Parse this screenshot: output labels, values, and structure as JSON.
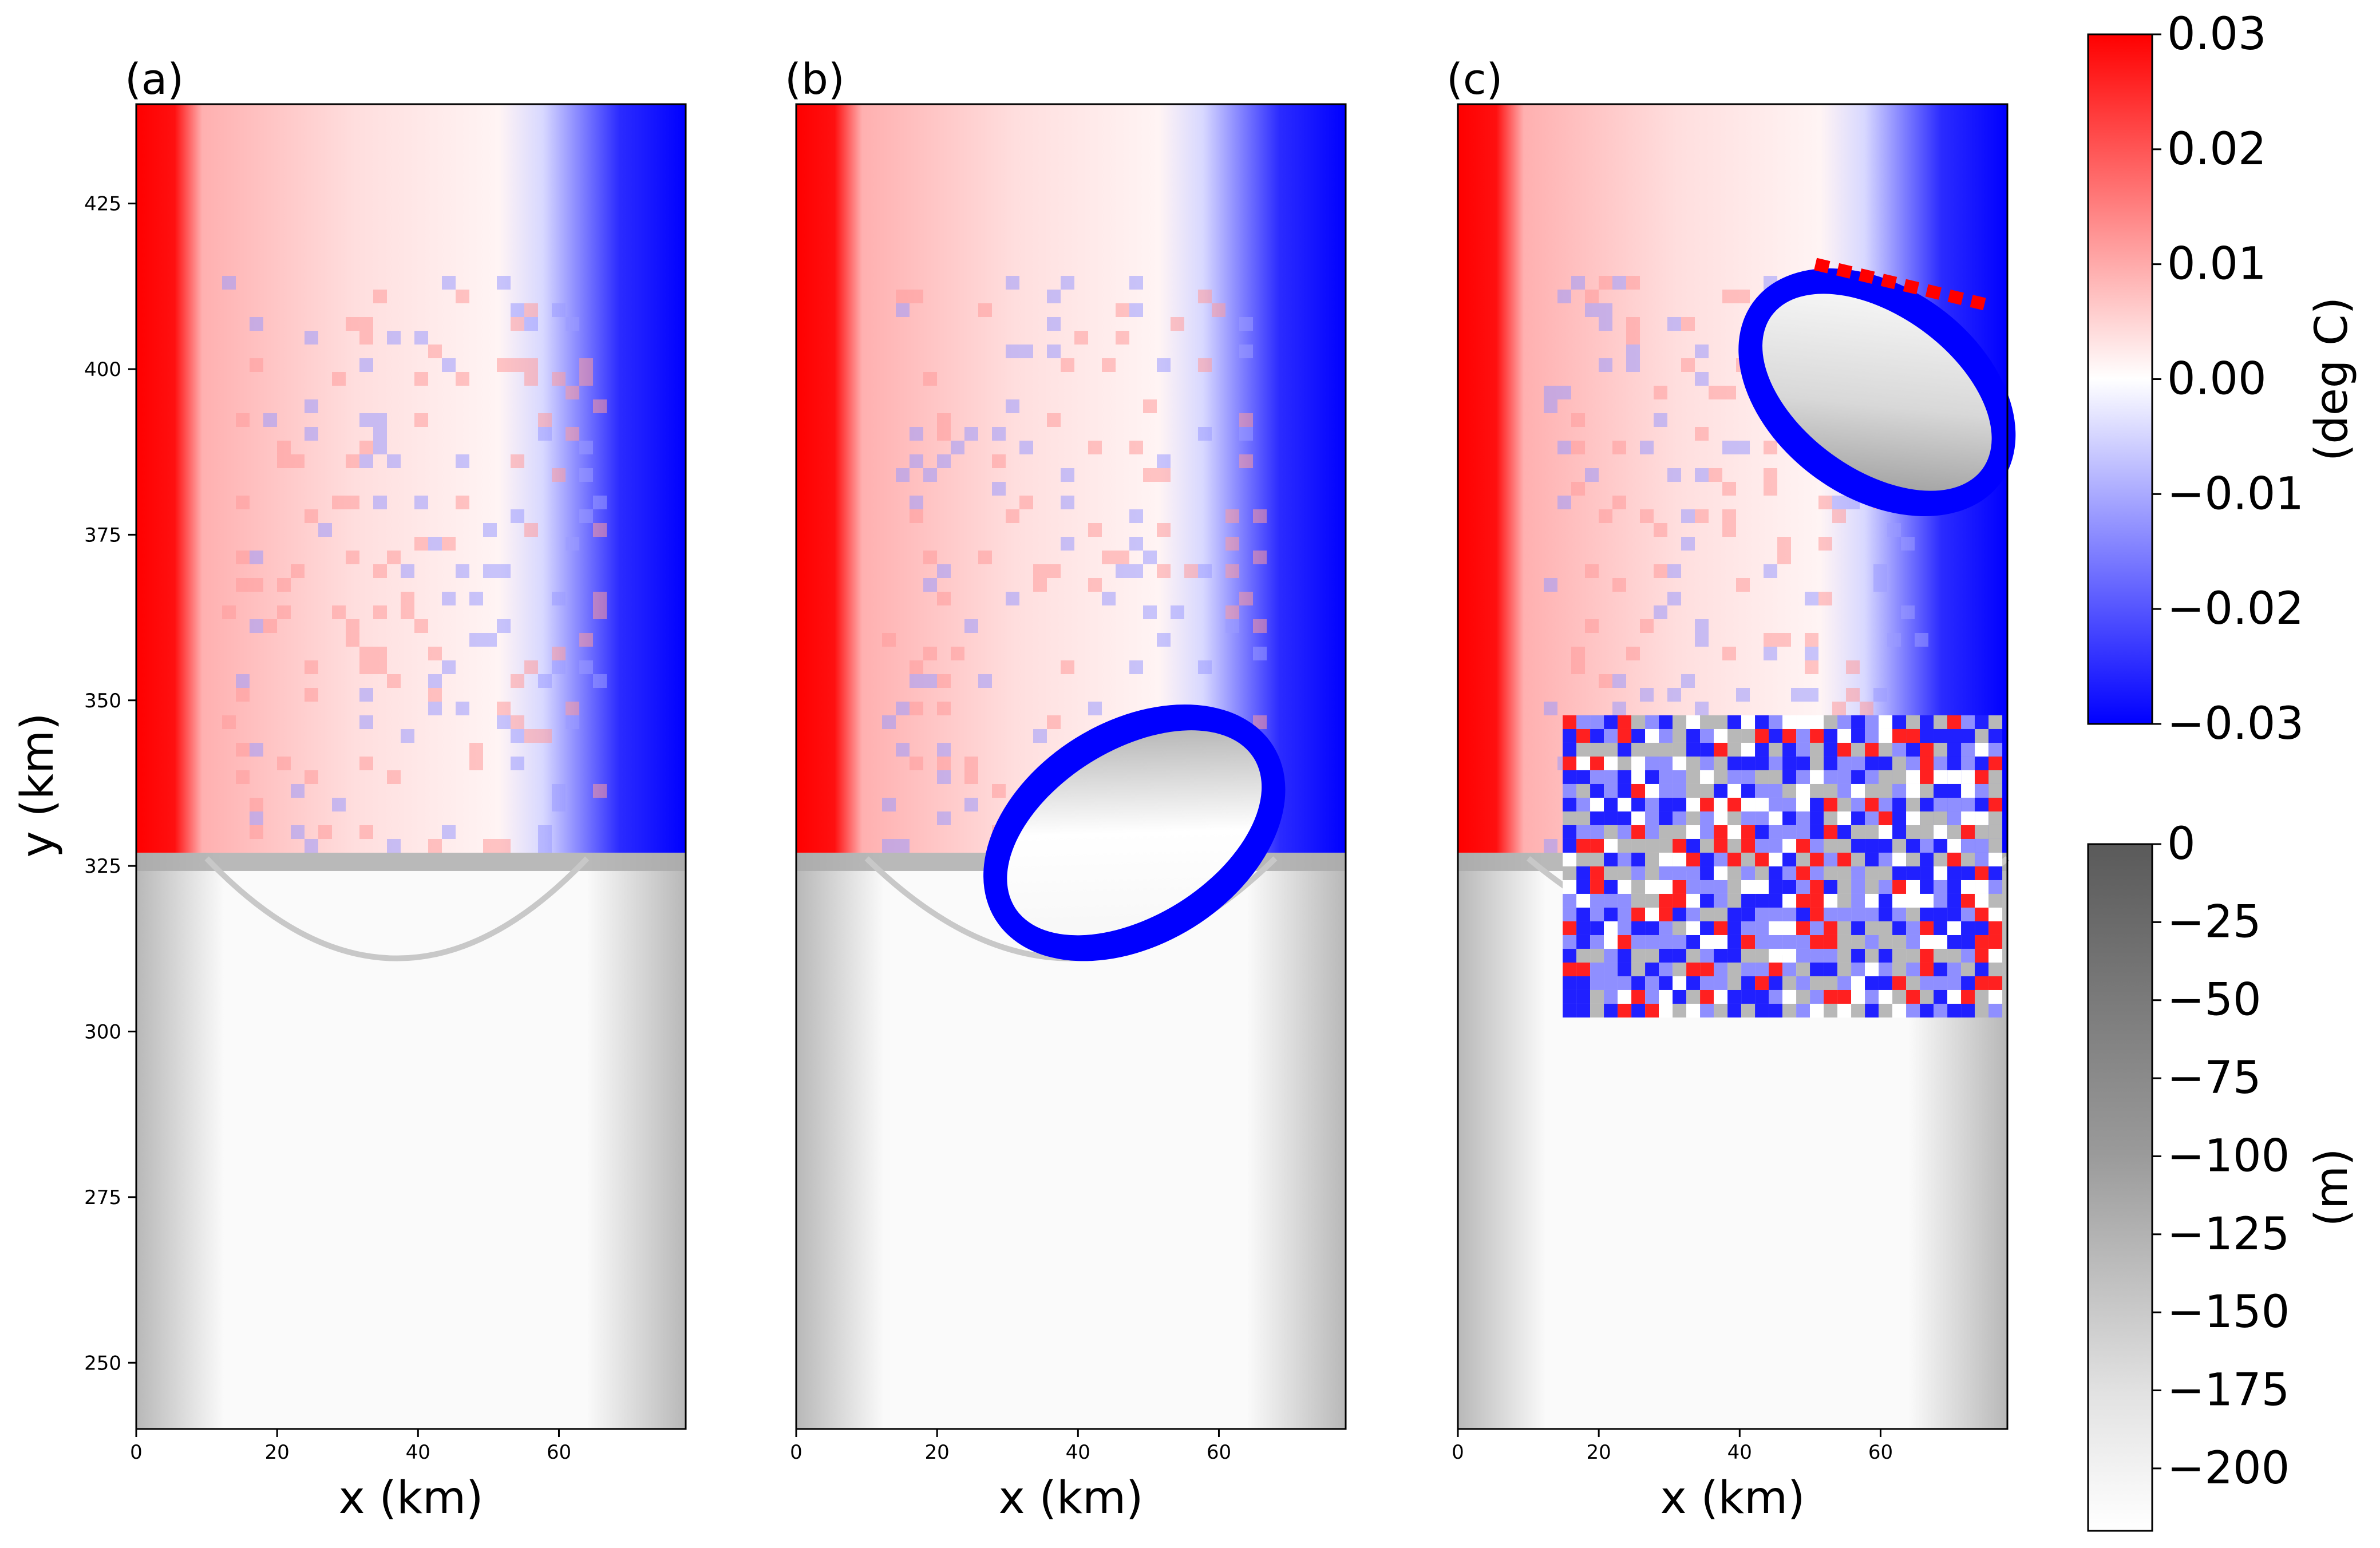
{
  "chart_data": [
    {
      "type": "heatmap",
      "panel_label": "(a)",
      "xlabel": "x (km)",
      "ylabel": "y (km)",
      "xlim": [
        0,
        78
      ],
      "ylim": [
        240,
        440
      ],
      "xticks": [
        0,
        20,
        40,
        60
      ],
      "yticks": [
        250,
        275,
        300,
        325,
        350,
        375,
        400,
        425
      ],
      "ice_front_y": 327,
      "cavity_extent": {
        "x_min": 10,
        "x_max": 64,
        "y_min": 302
      },
      "features": "Warm anomaly along western wall, cold anomaly along eastern wall, mixed eddies over cavity; open ocean north of ice front"
    },
    {
      "type": "heatmap",
      "panel_label": "(b)",
      "xlabel": "x (km)",
      "xlim": [
        0,
        78
      ],
      "ylim": [
        240,
        440
      ],
      "xticks": [
        0,
        20,
        40,
        60
      ],
      "ice_front_y": 327,
      "iceberg": {
        "x_range": [
          28,
          68
        ],
        "y_range": [
          310,
          350
        ],
        "tilt": "rising to the right"
      },
      "cavity_extent": {
        "x_min": 10,
        "x_max": 68,
        "y_min": 302
      }
    },
    {
      "type": "heatmap",
      "panel_label": "(c)",
      "xlabel": "x (km)",
      "xlim": [
        0,
        78
      ],
      "ylim": [
        240,
        440
      ],
      "xticks": [
        0,
        20,
        40,
        60
      ],
      "ice_front_y": 327,
      "iceberg": {
        "x_range": [
          41,
          78
        ],
        "y_range": [
          378,
          415
        ],
        "tilt": "descending to the right"
      },
      "cavity_extent": {
        "x_min": 10,
        "x_max": 78,
        "y_min": 302
      }
    }
  ],
  "colorbars": [
    {
      "name": "temperature-anomaly",
      "label": "(deg C)",
      "colormap": "bwr",
      "range": [
        -0.03,
        0.03
      ],
      "ticks": [
        0.03,
        0.02,
        0.01,
        0.0,
        -0.01,
        -0.02,
        -0.03
      ],
      "tick_labels": [
        "0.03",
        "0.02",
        "0.01",
        "0.00",
        "−0.01",
        "−0.02",
        "−0.03"
      ]
    },
    {
      "name": "depth",
      "label": "(m)",
      "colormap": "Greys",
      "range": [
        -220,
        0
      ],
      "ticks": [
        0,
        -25,
        -50,
        -75,
        -100,
        -125,
        -150,
        -175,
        -200
      ],
      "tick_labels": [
        "0",
        "−25",
        "−50",
        "−75",
        "−100",
        "−125",
        "−150",
        "−175",
        "−200"
      ]
    }
  ],
  "colors": {
    "warm": "#ff0000",
    "cold": "#0000ff",
    "neutral": "#ffffff",
    "ice_light": "#f7f7f7",
    "ice_dark": "#a8a8a8"
  }
}
